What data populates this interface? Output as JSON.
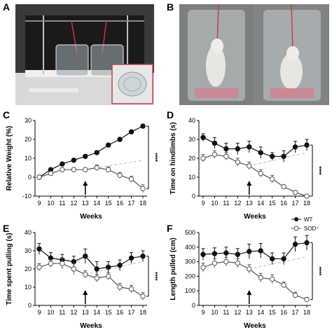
{
  "panels": {
    "A": {
      "letter": "A"
    },
    "B": {
      "letter": "B"
    },
    "C": {
      "letter": "C"
    },
    "D": {
      "letter": "D"
    },
    "E": {
      "letter": "E"
    },
    "F": {
      "letter": "F"
    }
  },
  "legend": {
    "wt": "WT",
    "sod": "SOD⁺"
  },
  "colors": {
    "wt": "#111111",
    "sod": "#555555",
    "sod_fill": "#ffffff",
    "trend": "#bbbbbb"
  },
  "chart_data": [
    {
      "id": "C",
      "type": "line",
      "xlabel": "Weeks",
      "ylabel": "Relative Weight (%)",
      "x": [
        9,
        10,
        11,
        12,
        13,
        14,
        15,
        16,
        17,
        18
      ],
      "ylim": [
        -10,
        30
      ],
      "yticks": [
        -10,
        0,
        10,
        20,
        30
      ],
      "arrow_week": 13,
      "significance": "****",
      "series": [
        {
          "name": "WT",
          "values": [
            0,
            4,
            7,
            9,
            11,
            13,
            17,
            20,
            24,
            27
          ],
          "err": [
            0.5,
            0.8,
            0.8,
            1,
            1,
            1,
            1,
            1,
            1,
            1
          ]
        },
        {
          "name": "SOD⁺",
          "values": [
            0,
            2,
            4,
            4,
            4,
            5,
            4,
            1,
            -1,
            -6
          ],
          "err": [
            0.5,
            0.8,
            1,
            1,
            1,
            1.5,
            1.5,
            1.5,
            1.5,
            2
          ]
        }
      ]
    },
    {
      "id": "D",
      "type": "line",
      "xlabel": "Weeks",
      "ylabel": "Time on hindlimbs (s)",
      "x": [
        9,
        10,
        11,
        12,
        13,
        14,
        15,
        16,
        17,
        18
      ],
      "ylim": [
        0,
        40
      ],
      "yticks": [
        0,
        10,
        20,
        30,
        40
      ],
      "arrow_week": 13,
      "significance": "****",
      "series": [
        {
          "name": "WT",
          "values": [
            31,
            28,
            25,
            25,
            26,
            23,
            21,
            21,
            26,
            27
          ],
          "err": [
            2,
            3,
            3,
            3,
            3,
            3,
            2,
            3,
            3,
            3
          ]
        },
        {
          "name": "SOD⁺",
          "values": [
            20,
            22,
            21,
            18,
            16,
            12,
            9,
            5,
            2,
            0
          ],
          "err": [
            2,
            2,
            2,
            2,
            2,
            2,
            2,
            1,
            1,
            0.5
          ]
        }
      ]
    },
    {
      "id": "E",
      "type": "line",
      "xlabel": "Weeks",
      "ylabel": "Time spent pulling (s)",
      "x": [
        9,
        10,
        11,
        12,
        13,
        14,
        15,
        16,
        17,
        18
      ],
      "ylim": [
        0,
        40
      ],
      "yticks": [
        0,
        10,
        20,
        30,
        40
      ],
      "arrow_week": 13,
      "significance": "****",
      "series": [
        {
          "name": "WT",
          "values": [
            31,
            26,
            25,
            24,
            27,
            20,
            21,
            22,
            26,
            27
          ],
          "err": [
            3,
            3,
            3,
            3,
            4,
            4,
            3,
            3,
            3,
            3
          ]
        },
        {
          "name": "SOD⁺",
          "values": [
            21,
            23,
            23,
            20,
            17,
            15,
            16,
            10,
            9,
            5
          ],
          "err": [
            2,
            2,
            3,
            3,
            2,
            2,
            2,
            2,
            2,
            2
          ]
        }
      ]
    },
    {
      "id": "F",
      "type": "line",
      "xlabel": "Weeks",
      "ylabel": "Length pulled (cm)",
      "x": [
        9,
        10,
        11,
        12,
        13,
        14,
        15,
        16,
        17,
        18
      ],
      "ylim": [
        0,
        500
      ],
      "yticks": [
        0,
        100,
        200,
        300,
        400,
        500
      ],
      "arrow_week": 13,
      "significance": "****",
      "series": [
        {
          "name": "WT",
          "values": [
            350,
            355,
            360,
            350,
            370,
            375,
            320,
            320,
            420,
            430
          ],
          "err": [
            40,
            40,
            40,
            40,
            50,
            50,
            40,
            40,
            50,
            50
          ]
        },
        {
          "name": "SOD⁺",
          "values": [
            260,
            290,
            300,
            290,
            250,
            190,
            180,
            140,
            70,
            40
          ],
          "err": [
            30,
            30,
            30,
            30,
            30,
            30,
            30,
            20,
            20,
            15
          ]
        }
      ]
    }
  ]
}
